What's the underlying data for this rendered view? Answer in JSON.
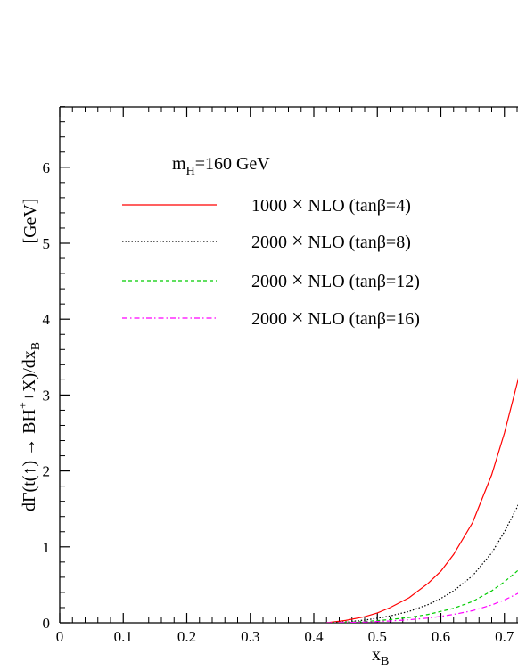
{
  "chart_data": {
    "type": "line",
    "title": "",
    "annotation": {
      "base": "m",
      "sub": "H",
      "rest": "=160 GeV"
    },
    "xlabel": {
      "base": "x",
      "sub": "B"
    },
    "ylabel_unit": "[GeV]",
    "ylabel": {
      "part1": "dΓ(t(",
      "arrow_small": "↑",
      "part2": ") → BH",
      "sup": "+",
      "part3": "+X)/dx",
      "sub": "B"
    },
    "xlim": [
      0,
      0.74
    ],
    "ylim": [
      0,
      6.8
    ],
    "x_ticks": [
      0,
      0.1,
      0.2,
      0.3,
      0.4,
      0.5,
      0.6,
      0.7
    ],
    "x_tick_labels": [
      "0",
      "0.1",
      "0.2",
      "0.3",
      "0.4",
      "0.5",
      "0.6",
      "0.7"
    ],
    "y_ticks": [
      0,
      1,
      2,
      3,
      4,
      5,
      6
    ],
    "y_tick_labels": [
      "0",
      "1",
      "2",
      "3",
      "4",
      "5",
      "6"
    ],
    "legend_position": "upper-left",
    "series": [
      {
        "name": "1000 × NLO (tanβ=4)",
        "color": "#ff0000",
        "dash": "",
        "x": [
          0.42,
          0.45,
          0.48,
          0.5,
          0.52,
          0.55,
          0.58,
          0.6,
          0.62,
          0.65,
          0.68,
          0.7,
          0.72,
          0.74
        ],
        "y": [
          0.0,
          0.03,
          0.08,
          0.13,
          0.2,
          0.33,
          0.52,
          0.68,
          0.9,
          1.32,
          1.95,
          2.5,
          3.15,
          3.85
        ]
      },
      {
        "name": "2000 × NLO (tanβ=8)",
        "color": "#000000",
        "dash": "1.5,2",
        "x": [
          0.42,
          0.45,
          0.48,
          0.5,
          0.52,
          0.55,
          0.58,
          0.6,
          0.62,
          0.65,
          0.68,
          0.7,
          0.72,
          0.74
        ],
        "y": [
          0.0,
          0.012,
          0.035,
          0.06,
          0.09,
          0.15,
          0.24,
          0.32,
          0.42,
          0.62,
          0.92,
          1.2,
          1.52,
          1.93
        ]
      },
      {
        "name": "2000 × NLO (tanβ=12)",
        "color": "#00cc00",
        "dash": "4,3",
        "x": [
          0.42,
          0.45,
          0.48,
          0.5,
          0.52,
          0.55,
          0.58,
          0.6,
          0.62,
          0.65,
          0.68,
          0.7,
          0.72,
          0.74
        ],
        "y": [
          0.0,
          0.006,
          0.016,
          0.028,
          0.042,
          0.07,
          0.11,
          0.15,
          0.19,
          0.28,
          0.42,
          0.54,
          0.68,
          0.87
        ]
      },
      {
        "name": "2000 × NLO (tanβ=16)",
        "color": "#ff00ff",
        "dash": "6,3,1.5,3",
        "x": [
          0.42,
          0.45,
          0.48,
          0.5,
          0.52,
          0.55,
          0.58,
          0.6,
          0.62,
          0.65,
          0.68,
          0.7,
          0.72,
          0.74
        ],
        "y": [
          0.0,
          0.003,
          0.009,
          0.016,
          0.024,
          0.04,
          0.062,
          0.085,
          0.11,
          0.16,
          0.235,
          0.3,
          0.38,
          0.49
        ]
      }
    ],
    "legend_labels": [
      {
        "factor": "1000",
        "times": "×",
        "rest": "NLO (tanβ=4)"
      },
      {
        "factor": "2000",
        "times": "×",
        "rest": "NLO (tanβ=8)"
      },
      {
        "factor": "2000",
        "times": "×",
        "rest": "NLO (tanβ=12)"
      },
      {
        "factor": "2000",
        "times": "×",
        "rest": "NLO (tanβ=16)"
      }
    ]
  }
}
